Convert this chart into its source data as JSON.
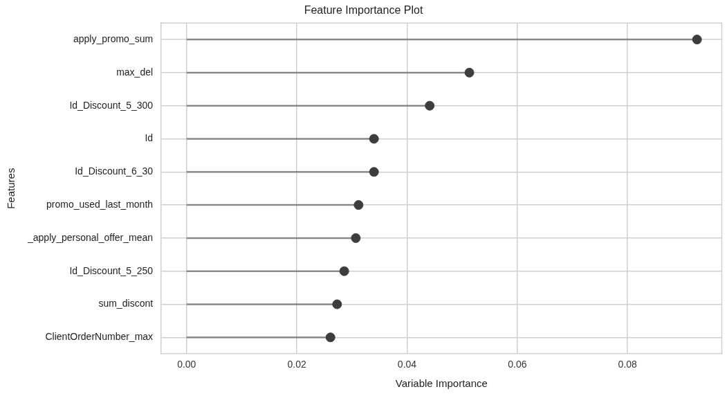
{
  "chart_data": {
    "type": "lollipop",
    "title": "Feature Importance Plot",
    "xlabel": "Variable Importance",
    "ylabel": "Features",
    "orientation": "horizontal",
    "categories": [
      "apply_promo_sum",
      "max_del",
      "Id_Discount_5_300",
      "Id",
      "Id_Discount_6_30",
      "promo_used_last_month",
      "_apply_personal_offer_mean",
      "Id_Discount_5_250",
      "sum_discont",
      "ClientOrderNumber_max"
    ],
    "values": [
      0.0926,
      0.0513,
      0.0441,
      0.034,
      0.034,
      0.0312,
      0.0307,
      0.0286,
      0.0273,
      0.0261
    ],
    "color": "#3d3d3d",
    "xlim": [
      -0.0046,
      0.0971
    ],
    "xticks": [
      {
        "value": 0,
        "label": "0.00"
      },
      {
        "value": 0.02,
        "label": "0.02"
      },
      {
        "value": 0.04,
        "label": "0.04"
      },
      {
        "value": 0.06,
        "label": "0.06"
      },
      {
        "value": 0.08,
        "label": "0.08"
      }
    ],
    "grid": true,
    "marker": "circle"
  }
}
